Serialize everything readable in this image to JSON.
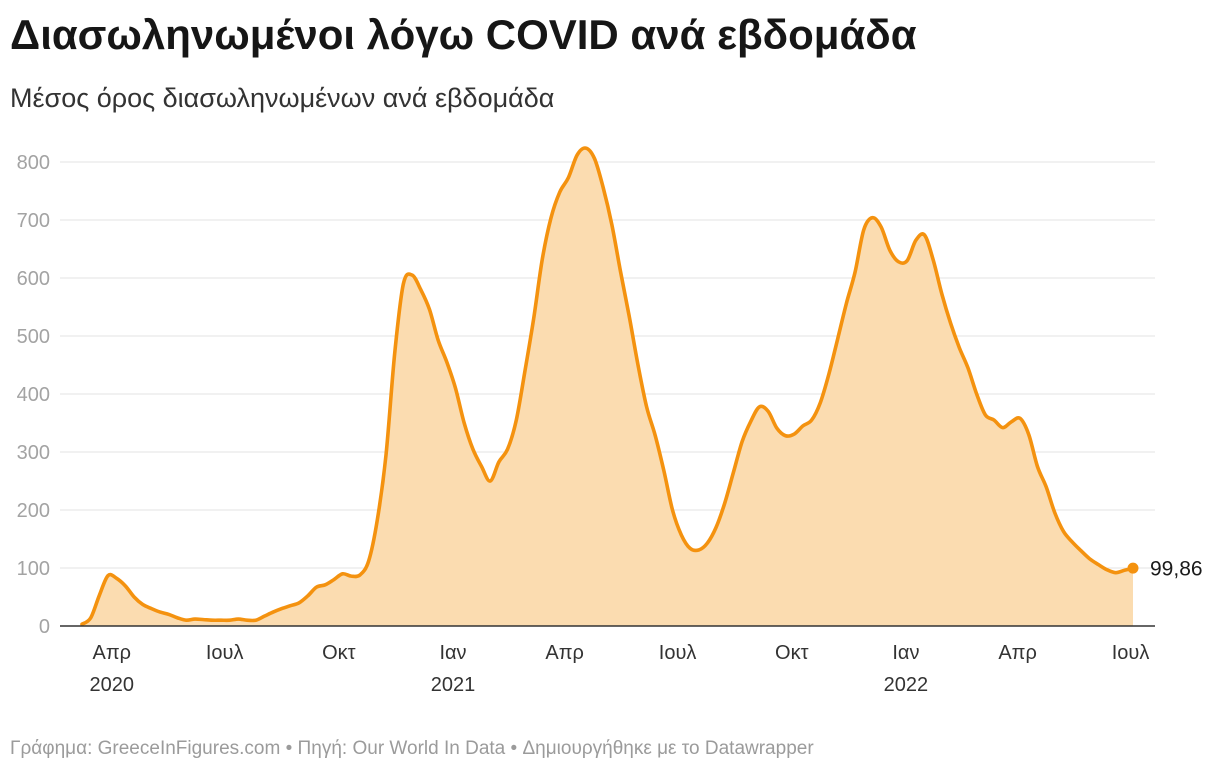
{
  "chart_data": {
    "type": "area",
    "title": "Διασωληνωμένοι λόγω COVID ανά εβδομάδα",
    "subtitle": "Μέσος όρος διασωληνωμένων ανά εβδομάδα",
    "x": [
      "2020-03-08",
      "2020-03-15",
      "2020-03-22",
      "2020-03-29",
      "2020-04-05",
      "2020-04-12",
      "2020-04-19",
      "2020-04-26",
      "2020-05-03",
      "2020-05-10",
      "2020-05-17",
      "2020-05-24",
      "2020-05-31",
      "2020-06-07",
      "2020-06-14",
      "2020-06-21",
      "2020-06-28",
      "2020-07-05",
      "2020-07-12",
      "2020-07-19",
      "2020-07-26",
      "2020-08-02",
      "2020-08-09",
      "2020-08-16",
      "2020-08-23",
      "2020-08-30",
      "2020-09-06",
      "2020-09-13",
      "2020-09-20",
      "2020-09-27",
      "2020-10-04",
      "2020-10-11",
      "2020-10-18",
      "2020-10-25",
      "2020-11-01",
      "2020-11-08",
      "2020-11-15",
      "2020-11-22",
      "2020-11-29",
      "2020-12-06",
      "2020-12-13",
      "2020-12-20",
      "2020-12-27",
      "2021-01-03",
      "2021-01-10",
      "2021-01-17",
      "2021-01-24",
      "2021-01-31",
      "2021-02-07",
      "2021-02-14",
      "2021-02-21",
      "2021-02-28",
      "2021-03-07",
      "2021-03-14",
      "2021-03-21",
      "2021-03-28",
      "2021-04-04",
      "2021-04-11",
      "2021-04-18",
      "2021-04-25",
      "2021-05-02",
      "2021-05-09",
      "2021-05-16",
      "2021-05-23",
      "2021-05-30",
      "2021-06-06",
      "2021-06-13",
      "2021-06-20",
      "2021-06-27",
      "2021-07-04",
      "2021-07-11",
      "2021-07-18",
      "2021-07-25",
      "2021-08-01",
      "2021-08-08",
      "2021-08-15",
      "2021-08-22",
      "2021-08-29",
      "2021-09-05",
      "2021-09-12",
      "2021-09-19",
      "2021-09-26",
      "2021-10-03",
      "2021-10-10",
      "2021-10-17",
      "2021-10-24",
      "2021-10-31",
      "2021-11-07",
      "2021-11-14",
      "2021-11-21",
      "2021-11-28",
      "2021-12-05",
      "2021-12-12",
      "2021-12-19",
      "2021-12-26",
      "2022-01-02",
      "2022-01-09",
      "2022-01-16",
      "2022-01-23",
      "2022-01-30",
      "2022-02-06",
      "2022-02-13",
      "2022-02-20",
      "2022-02-27",
      "2022-03-06",
      "2022-03-13",
      "2022-03-20",
      "2022-03-27",
      "2022-04-03",
      "2022-04-10",
      "2022-04-17",
      "2022-04-24",
      "2022-05-01",
      "2022-05-08",
      "2022-05-15",
      "2022-05-22",
      "2022-05-29",
      "2022-06-05",
      "2022-06-12",
      "2022-06-19",
      "2022-06-26",
      "2022-07-03"
    ],
    "y": [
      3,
      14,
      53,
      87,
      82,
      69,
      50,
      37,
      30,
      24,
      20,
      14,
      10,
      12,
      11,
      10,
      10,
      10,
      12,
      10,
      10,
      17,
      24,
      30,
      35,
      40,
      52,
      67,
      71,
      80,
      90,
      86,
      88,
      112,
      183,
      295,
      470,
      590,
      605,
      580,
      546,
      493,
      455,
      410,
      350,
      305,
      275,
      250,
      283,
      305,
      355,
      440,
      530,
      633,
      704,
      748,
      773,
      812,
      824,
      806,
      756,
      692,
      611,
      534,
      451,
      378,
      328,
      267,
      199,
      157,
      134,
      131,
      143,
      170,
      212,
      265,
      318,
      353,
      378,
      370,
      341,
      328,
      331,
      345,
      355,
      385,
      435,
      495,
      556,
      610,
      683,
      704,
      688,
      648,
      628,
      630,
      665,
      674,
      631,
      572,
      522,
      480,
      445,
      400,
      364,
      355,
      342,
      352,
      358,
      330,
      275,
      240,
      195,
      163,
      145,
      130,
      116,
      106,
      97,
      92,
      96,
      99.86
    ],
    "ylim": [
      0,
      800
    ],
    "y_ticks": [
      0,
      100,
      200,
      300,
      400,
      500,
      600,
      700,
      800
    ],
    "x_ticks": [
      {
        "date": "2020-04-01",
        "month": "Απρ",
        "year": "2020"
      },
      {
        "date": "2020-07-01",
        "month": "Ιουλ"
      },
      {
        "date": "2020-10-01",
        "month": "Οκτ"
      },
      {
        "date": "2021-01-01",
        "month": "Ιαν",
        "year": "2021"
      },
      {
        "date": "2021-04-01",
        "month": "Απρ"
      },
      {
        "date": "2021-07-01",
        "month": "Ιουλ"
      },
      {
        "date": "2021-10-01",
        "month": "Οκτ"
      },
      {
        "date": "2022-01-01",
        "month": "Ιαν",
        "year": "2022"
      },
      {
        "date": "2022-04-01",
        "month": "Απρ"
      },
      {
        "date": "2022-07-01",
        "month": "Ιουλ"
      }
    ],
    "end_label": "99,86",
    "grid": true,
    "line_color": "#f4920f",
    "area_color": "#fbdcb0"
  },
  "footer": {
    "byline": "Γράφημα: GreeceInFigures.com",
    "separator": "•",
    "source_label": "Πηγή:",
    "source_name": "Our World In Data",
    "credit": "Δημιουργήθηκε με το Datawrapper"
  }
}
